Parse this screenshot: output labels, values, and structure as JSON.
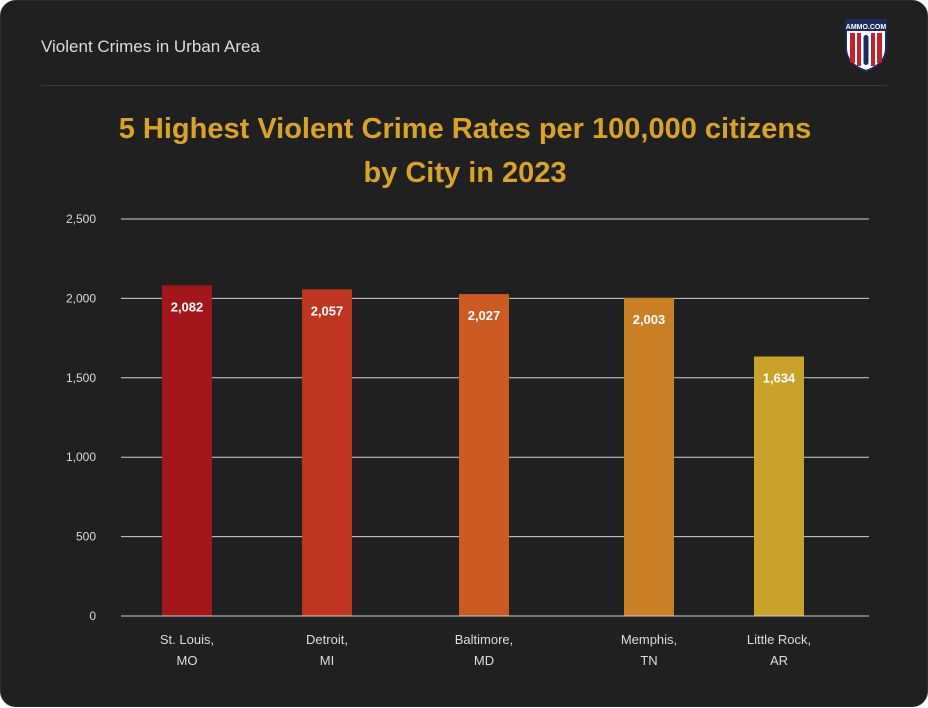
{
  "header": {
    "title": "Violent Crimes in Urban Area",
    "logo_text": "AMMO.COM"
  },
  "chart_data": {
    "type": "bar",
    "title_lines": [
      "5 Highest Violent Crime Rates per 100,000 citizens",
      "by City in 2023"
    ],
    "categories": [
      [
        "St. Louis,",
        "MO"
      ],
      [
        "Detroit,",
        "MI"
      ],
      [
        "Baltimore,",
        "MD"
      ],
      [
        "Memphis,",
        "TN"
      ],
      [
        "Little Rock,",
        "AR"
      ]
    ],
    "values": [
      2082,
      2057,
      2027,
      2003,
      1634
    ],
    "value_labels": [
      "2,082",
      "2,057",
      "2,027",
      "2,003",
      "1,634"
    ],
    "bar_colors": [
      "#a3161c",
      "#c03522",
      "#cb5a22",
      "#c98024",
      "#c9a22c"
    ],
    "ylim": [
      0,
      2500
    ],
    "yticks": [
      0,
      500,
      1000,
      1500,
      2000,
      2500
    ],
    "ytick_labels": [
      "0",
      "500",
      "1,000",
      "1,500",
      "2,000",
      "2,500"
    ],
    "grid": true,
    "xlabel": "",
    "ylabel": ""
  },
  "colors": {
    "background": "#202020",
    "title": "#d9a22b",
    "text": "#dcdcdc",
    "gridline": "#d0d0d0"
  }
}
